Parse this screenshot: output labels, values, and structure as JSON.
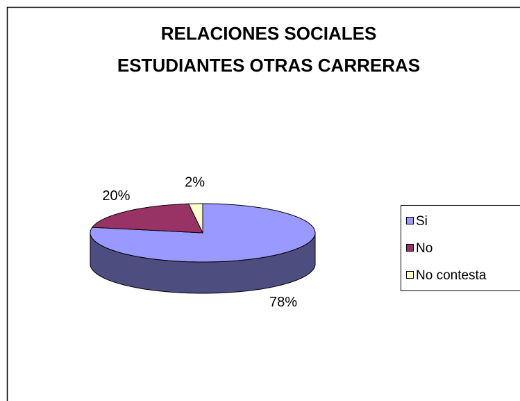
{
  "chart_data": {
    "type": "pie3d",
    "title": [
      "RELACIONES SOCIALES",
      "ESTUDIANTES OTRAS CARRERAS"
    ],
    "categories": [
      "Si",
      "No",
      "No contesta"
    ],
    "values": [
      78,
      20,
      2
    ],
    "value_labels": [
      "78%",
      "20%",
      "2%"
    ],
    "colors": [
      "#9999ff",
      "#993366",
      "#ffffcc"
    ],
    "legend": "right"
  }
}
